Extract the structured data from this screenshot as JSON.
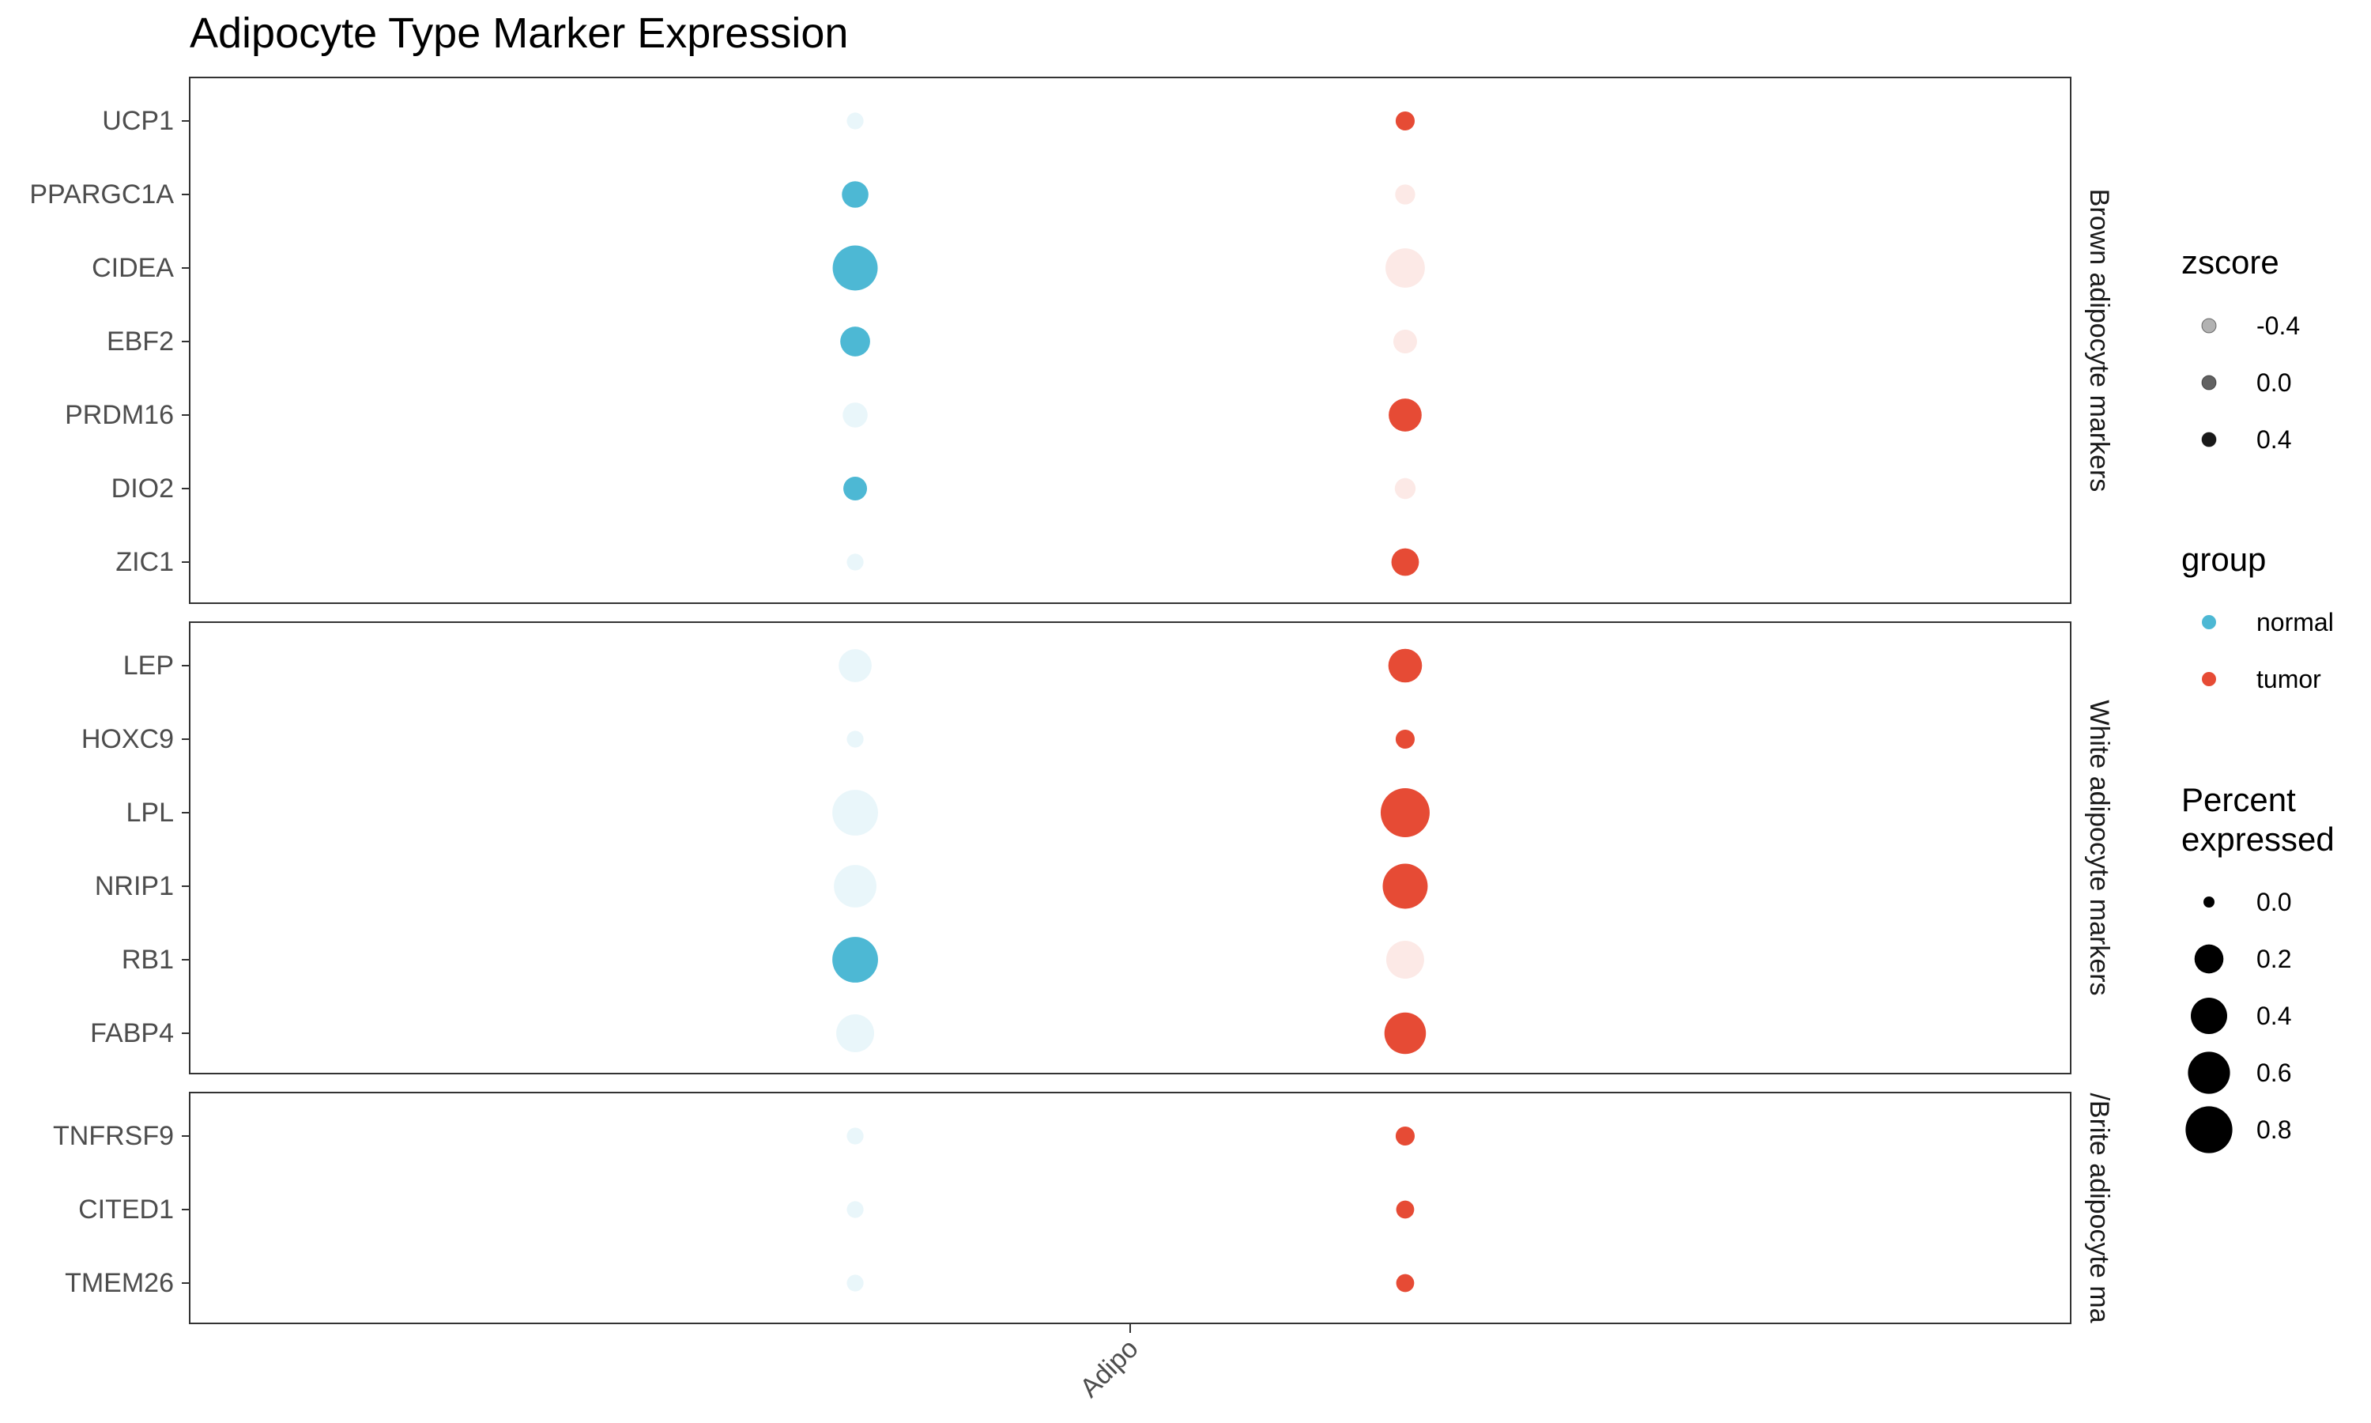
{
  "chart_data": {
    "type": "scatter",
    "title": "Adipocyte Type Marker Expression",
    "xlabel": "",
    "ylabel": "",
    "x_categories": [
      "Adipo"
    ],
    "groups": [
      "normal",
      "tumor"
    ],
    "colors": {
      "normal": "#4db8d4",
      "tumor": "#e64b35"
    },
    "facets": [
      {
        "label": "Brown adipocyte markers",
        "label_display": "Brown adipocyte markers",
        "genes": [
          "UCP1",
          "PPARGC1A",
          "CIDEA",
          "EBF2",
          "PRDM16",
          "DIO2",
          "ZIC1"
        ]
      },
      {
        "label": "White adipocyte markers",
        "label_display": "White adipocyte markers",
        "genes": [
          "LEP",
          "HOXC9",
          "LPL",
          "NRIP1",
          "RB1",
          "FABP4"
        ]
      },
      {
        "label": "Beige/Brite adipocyte markers",
        "label_display": "/Brite adipocyte ma",
        "genes": [
          "TNFRSF9",
          "CITED1",
          "TMEM26"
        ]
      }
    ],
    "series": [
      {
        "name": "normal",
        "points": [
          {
            "gene": "UCP1",
            "pct": 0.02,
            "zscore": -0.55
          },
          {
            "gene": "PPARGC1A",
            "pct": 0.15,
            "zscore": 0.5
          },
          {
            "gene": "CIDEA",
            "pct": 0.72,
            "zscore": 0.5
          },
          {
            "gene": "EBF2",
            "pct": 0.22,
            "zscore": 0.5
          },
          {
            "gene": "PRDM16",
            "pct": 0.12,
            "zscore": -0.55
          },
          {
            "gene": "DIO2",
            "pct": 0.1,
            "zscore": 0.5
          },
          {
            "gene": "ZIC1",
            "pct": 0.02,
            "zscore": -0.55
          },
          {
            "gene": "LEP",
            "pct": 0.3,
            "zscore": -0.55
          },
          {
            "gene": "HOXC9",
            "pct": 0.02,
            "zscore": -0.55
          },
          {
            "gene": "LPL",
            "pct": 0.75,
            "zscore": -0.55
          },
          {
            "gene": "NRIP1",
            "pct": 0.62,
            "zscore": -0.55
          },
          {
            "gene": "RB1",
            "pct": 0.75,
            "zscore": 0.5
          },
          {
            "gene": "FABP4",
            "pct": 0.45,
            "zscore": -0.55
          },
          {
            "gene": "TNFRSF9",
            "pct": 0.02,
            "zscore": -0.55
          },
          {
            "gene": "CITED1",
            "pct": 0.02,
            "zscore": -0.55
          },
          {
            "gene": "TMEM26",
            "pct": 0.02,
            "zscore": -0.55
          }
        ]
      },
      {
        "name": "tumor",
        "points": [
          {
            "gene": "UCP1",
            "pct": 0.04,
            "zscore": 0.5
          },
          {
            "gene": "PPARGC1A",
            "pct": 0.05,
            "zscore": -0.55
          },
          {
            "gene": "CIDEA",
            "pct": 0.5,
            "zscore": -0.55
          },
          {
            "gene": "EBF2",
            "pct": 0.1,
            "zscore": -0.55
          },
          {
            "gene": "PRDM16",
            "pct": 0.3,
            "zscore": 0.5
          },
          {
            "gene": "DIO2",
            "pct": 0.06,
            "zscore": -0.55
          },
          {
            "gene": "ZIC1",
            "pct": 0.17,
            "zscore": 0.5
          },
          {
            "gene": "LEP",
            "pct": 0.32,
            "zscore": 0.5
          },
          {
            "gene": "HOXC9",
            "pct": 0.04,
            "zscore": 0.5
          },
          {
            "gene": "LPL",
            "pct": 0.9,
            "zscore": 0.5
          },
          {
            "gene": "NRIP1",
            "pct": 0.72,
            "zscore": 0.5
          },
          {
            "gene": "RB1",
            "pct": 0.45,
            "zscore": -0.55
          },
          {
            "gene": "FABP4",
            "pct": 0.58,
            "zscore": 0.5
          },
          {
            "gene": "TNFRSF9",
            "pct": 0.04,
            "zscore": 0.5
          },
          {
            "gene": "CITED1",
            "pct": 0.03,
            "zscore": 0.5
          },
          {
            "gene": "TMEM26",
            "pct": 0.03,
            "zscore": 0.5
          }
        ]
      }
    ],
    "legend": {
      "placement": "right",
      "zscore": {
        "title": "zscore",
        "breaks": [
          -0.4,
          0.0,
          0.4
        ],
        "labels": [
          "-0.4",
          "0.0",
          "0.4"
        ]
      },
      "group": {
        "title": "group",
        "labels": [
          "normal",
          "tumor"
        ]
      },
      "size": {
        "title_lines": [
          "Percent",
          "expressed"
        ],
        "breaks": [
          0.0,
          0.2,
          0.4,
          0.6,
          0.8
        ],
        "labels": [
          "0.0",
          "0.2",
          "0.4",
          "0.6",
          "0.8"
        ]
      }
    },
    "grid": false
  }
}
